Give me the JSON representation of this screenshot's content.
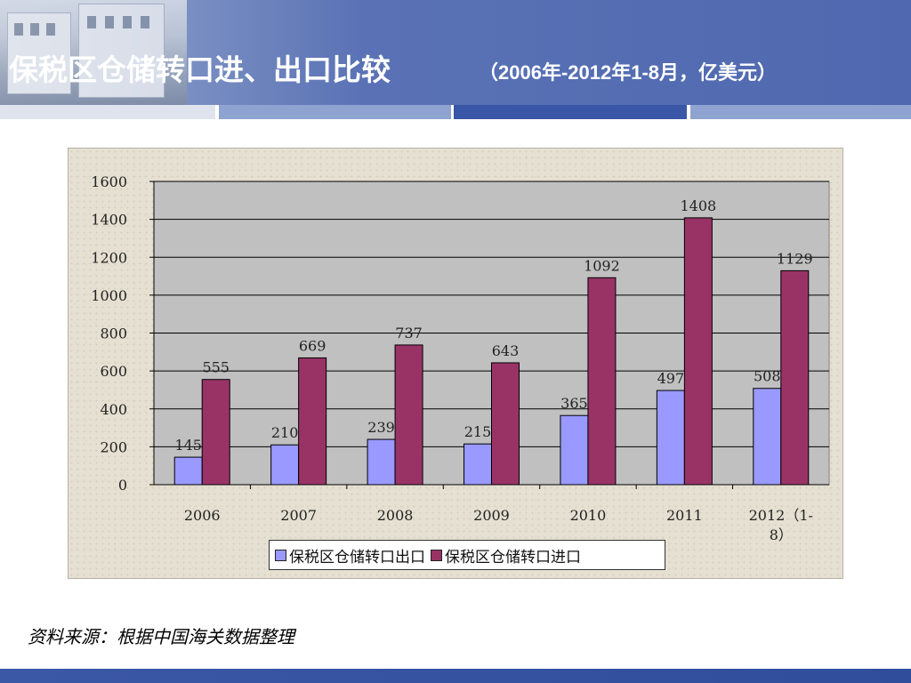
{
  "slide": {
    "title_main": "保税区仓储转口进、出口比较",
    "title_sub": "（2006年-2012年1-8月，亿美元）",
    "source_note": "资料来源：根据中国海关数据整理",
    "colors": {
      "header": "#5a72b5",
      "export_bar": "#9999ff",
      "import_bar": "#993366",
      "plot_bg": "#c0c0c0"
    }
  },
  "chart_data": {
    "type": "bar",
    "categories": [
      "2006",
      "2007",
      "2008",
      "2009",
      "2010",
      "2011",
      "2012（1-8）"
    ],
    "series": [
      {
        "name": "保税区仓储转口出口",
        "color": "#9999ff",
        "values": [
          145,
          210,
          239,
          215,
          365,
          497,
          508
        ]
      },
      {
        "name": "保税区仓储转口进口",
        "color": "#993366",
        "values": [
          555,
          669,
          737,
          643,
          1092,
          1408,
          1129
        ]
      }
    ],
    "ylim": [
      0,
      1600
    ],
    "yticks": [
      0,
      200,
      400,
      600,
      800,
      1000,
      1200,
      1400,
      1600
    ],
    "grid": true,
    "legend_position": "bottom",
    "title": "",
    "xlabel": "",
    "ylabel": ""
  }
}
